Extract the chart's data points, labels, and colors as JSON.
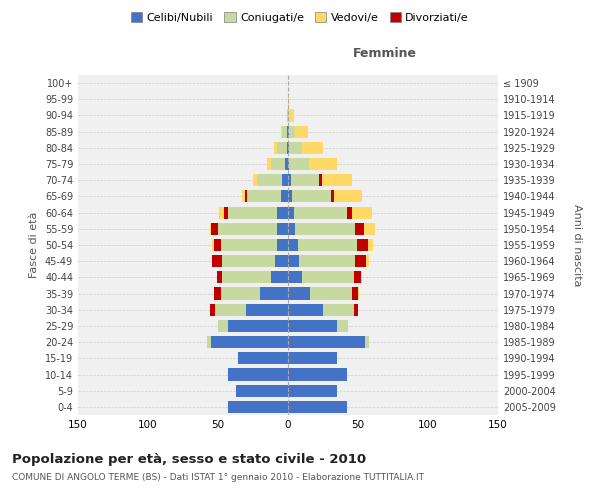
{
  "age_groups": [
    "0-4",
    "5-9",
    "10-14",
    "15-19",
    "20-24",
    "25-29",
    "30-34",
    "35-39",
    "40-44",
    "45-49",
    "50-54",
    "55-59",
    "60-64",
    "65-69",
    "70-74",
    "75-79",
    "80-84",
    "85-89",
    "90-94",
    "95-99",
    "100+"
  ],
  "birth_years": [
    "2005-2009",
    "2000-2004",
    "1995-1999",
    "1990-1994",
    "1985-1989",
    "1980-1984",
    "1975-1979",
    "1970-1974",
    "1965-1969",
    "1960-1964",
    "1955-1959",
    "1950-1954",
    "1945-1949",
    "1940-1944",
    "1935-1939",
    "1930-1934",
    "1925-1929",
    "1920-1924",
    "1915-1919",
    "1910-1914",
    "≤ 1909"
  ],
  "male": {
    "celibi": [
      43,
      37,
      43,
      36,
      55,
      43,
      30,
      20,
      12,
      9,
      8,
      8,
      8,
      5,
      4,
      2,
      1,
      1,
      0,
      0,
      0
    ],
    "coniugati": [
      0,
      0,
      0,
      0,
      3,
      7,
      22,
      28,
      35,
      38,
      40,
      42,
      35,
      24,
      18,
      10,
      7,
      3,
      1,
      0,
      0
    ],
    "vedovi": [
      0,
      0,
      0,
      0,
      0,
      0,
      0,
      0,
      0,
      0,
      1,
      1,
      3,
      2,
      3,
      3,
      2,
      1,
      0,
      0,
      0
    ],
    "divorziati": [
      0,
      0,
      0,
      0,
      0,
      0,
      4,
      5,
      4,
      7,
      5,
      5,
      3,
      2,
      0,
      0,
      0,
      0,
      0,
      0,
      0
    ]
  },
  "female": {
    "nubili": [
      42,
      35,
      42,
      35,
      55,
      35,
      25,
      16,
      10,
      8,
      7,
      5,
      4,
      3,
      2,
      1,
      1,
      1,
      0,
      0,
      0
    ],
    "coniugate": [
      0,
      0,
      0,
      0,
      3,
      8,
      22,
      30,
      37,
      40,
      42,
      43,
      38,
      28,
      20,
      14,
      9,
      4,
      1,
      0,
      0
    ],
    "vedove": [
      0,
      0,
      0,
      0,
      0,
      0,
      0,
      1,
      1,
      2,
      4,
      8,
      14,
      20,
      22,
      20,
      15,
      9,
      3,
      1,
      0
    ],
    "divorziate": [
      0,
      0,
      0,
      0,
      0,
      0,
      3,
      4,
      5,
      8,
      8,
      6,
      4,
      2,
      2,
      0,
      0,
      0,
      0,
      0,
      0
    ]
  },
  "colors": {
    "celibi": "#4472C4",
    "coniugati": "#c5d9a0",
    "vedovi": "#ffd966",
    "divorziati": "#c00000"
  },
  "title": "Popolazione per età, sesso e stato civile - 2010",
  "subtitle": "COMUNE DI ANGOLO TERME (BS) - Dati ISTAT 1° gennaio 2010 - Elaborazione TUTTITALIA.IT",
  "label_femmine": "Femmine",
  "ylabel_left": "Fasce di età",
  "ylabel_right": "Anni di nascita",
  "legend_labels": [
    "Celibi/Nubili",
    "Coniugati/e",
    "Vedovi/e",
    "Divorziati/e"
  ],
  "xlim": 150,
  "bar_height": 0.75,
  "background_color": "#f0f0f0",
  "plot_bg_color": "#f0f0f0",
  "grid_color": "#cccccc"
}
